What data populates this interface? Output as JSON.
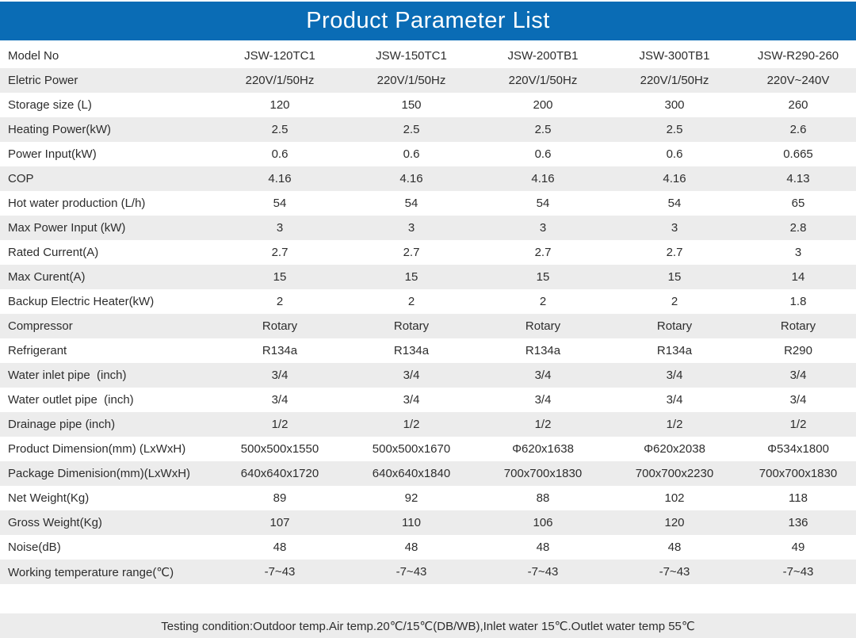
{
  "title": "Product Parameter List",
  "colors": {
    "header_bg": "#0a6cb5",
    "header_text": "#ffffff",
    "row_alt_bg": "#ececec",
    "body_text": "#2d2d2d"
  },
  "table": {
    "header": {
      "label": "Model No",
      "models": [
        "JSW-120TC1",
        "JSW-150TC1",
        "JSW-200TB1",
        "JSW-300TB1",
        "JSW-R290-260"
      ]
    },
    "rows": [
      {
        "label": "Eletric Power",
        "values": [
          "220V/1/50Hz",
          "220V/1/50Hz",
          "220V/1/50Hz",
          "220V/1/50Hz",
          "220V~240V"
        ]
      },
      {
        "label": "Storage size (L)",
        "values": [
          "120",
          "150",
          "200",
          "300",
          "260"
        ]
      },
      {
        "label": "Heating Power(kW)",
        "values": [
          "2.5",
          "2.5",
          "2.5",
          "2.5",
          "2.6"
        ]
      },
      {
        "label": "Power Input(kW)",
        "values": [
          "0.6",
          "0.6",
          "0.6",
          "0.6",
          "0.665"
        ]
      },
      {
        "label": "COP",
        "values": [
          "4.16",
          "4.16",
          "4.16",
          "4.16",
          "4.13"
        ]
      },
      {
        "label": "Hot water production (L/h)",
        "values": [
          "54",
          "54",
          "54",
          "54",
          "65"
        ]
      },
      {
        "label": "Max Power Input (kW)",
        "values": [
          "3",
          "3",
          "3",
          "3",
          "2.8"
        ]
      },
      {
        "label": "Rated Current(A)",
        "values": [
          "2.7",
          "2.7",
          "2.7",
          "2.7",
          "3"
        ]
      },
      {
        "label": "Max Curent(A)",
        "values": [
          "15",
          "15",
          "15",
          "15",
          "14"
        ]
      },
      {
        "label": "Backup Electric Heater(kW)",
        "values": [
          "2",
          "2",
          "2",
          "2",
          "1.8"
        ]
      },
      {
        "label": "Compressor",
        "values": [
          "Rotary",
          "Rotary",
          "Rotary",
          "Rotary",
          "Rotary"
        ]
      },
      {
        "label": "Refrigerant",
        "values": [
          "R134a",
          "R134a",
          "R134a",
          "R134a",
          "R290"
        ]
      },
      {
        "label": "Water inlet pipe  (inch)",
        "values": [
          "3/4",
          "3/4",
          "3/4",
          "3/4",
          "3/4"
        ]
      },
      {
        "label": "Water outlet pipe  (inch)",
        "values": [
          "3/4",
          "3/4",
          "3/4",
          "3/4",
          "3/4"
        ]
      },
      {
        "label": "Drainage pipe (inch)",
        "values": [
          "1/2",
          "1/2",
          "1/2",
          "1/2",
          "1/2"
        ]
      },
      {
        "label": "Product Dimension(mm) (LxWxH)",
        "values": [
          "500x500x1550",
          "500x500x1670",
          "Φ620x1638",
          "Φ620x2038",
          "Φ534x1800"
        ]
      },
      {
        "label": "Package Dimenision(mm)(LxWxH)",
        "values": [
          "640x640x1720",
          "640x640x1840",
          "700x700x1830",
          "700x700x2230",
          "700x700x1830"
        ]
      },
      {
        "label": "Net Weight(Kg)",
        "values": [
          "89",
          "92",
          "88",
          "102",
          "118"
        ]
      },
      {
        "label": "Gross Weight(Kg)",
        "values": [
          "107",
          "110",
          "106",
          "120",
          "136"
        ]
      },
      {
        "label": "Noise(dB)",
        "values": [
          "48",
          "48",
          "48",
          "48",
          "49"
        ]
      },
      {
        "label": "Working temperature range(℃)",
        "values": [
          "-7~43",
          "-7~43",
          "-7~43",
          "-7~43",
          "-7~43"
        ]
      }
    ]
  },
  "footer": {
    "text": "Testing condition:Outdoor temp.Air temp.20℃/15℃(DB/WB),Inlet water 15℃.Outlet water temp 55℃"
  }
}
